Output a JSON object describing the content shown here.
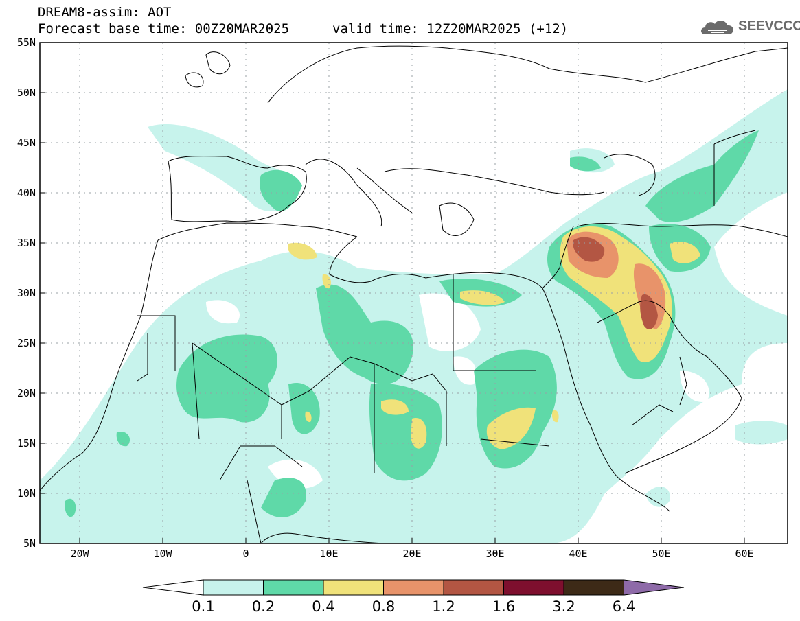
{
  "header": {
    "title": "DREAM8-assim: AOT",
    "base_time": "Forecast base time: 00Z20MAR2025",
    "valid_time": "valid time: 12Z20MAR2025 (+12)"
  },
  "logo": {
    "text": "SEEVCCC",
    "icon": "cloud-icon"
  },
  "map": {
    "lat_labels": [
      "55N",
      "50N",
      "45N",
      "40N",
      "35N",
      "30N",
      "25N",
      "20N",
      "15N",
      "10N",
      "5N"
    ],
    "lon_labels": [
      "20W",
      "10W",
      "0",
      "10E",
      "20E",
      "30E",
      "40E",
      "50E",
      "60E"
    ],
    "grid": true
  },
  "colorbar": {
    "labels": [
      "0.1",
      "0.2",
      "0.4",
      "0.8",
      "1.2",
      "1.6",
      "3.2",
      "6.4"
    ],
    "colors": [
      "#c7f3ec",
      "#5fd9a8",
      "#f0e27a",
      "#e8936a",
      "#b35643",
      "#7e0f2e",
      "#3d2a17",
      "#8e6aa8"
    ]
  }
}
